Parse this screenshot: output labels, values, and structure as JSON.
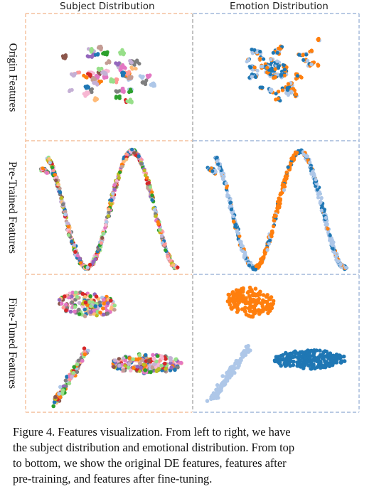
{
  "columns": [
    "Subject Distribution",
    "Emotion Distribution"
  ],
  "rows": [
    "Origin Features",
    "Pre-Trained Features",
    "Fine-Tuned Features"
  ],
  "colors": {
    "subject_border": "#f2b58a",
    "emotion_border": "#8fabd2",
    "subject_palette": [
      "#1f77b4",
      "#ff7f0e",
      "#2ca02c",
      "#d62728",
      "#9467bd",
      "#8c564b",
      "#e377c2",
      "#7f7f7f",
      "#bcbd22",
      "#aec7e8",
      "#f7b6d2",
      "#c49c94",
      "#98df8a",
      "#ff9896",
      "#ffbb78",
      "#c5b0d5"
    ],
    "emotion_palette": [
      "#1f77b4",
      "#ff7f0e",
      "#aec7e8"
    ]
  },
  "caption": {
    "lines": [
      "Figure 4. Features visualization. From left to right, we have",
      "the subject distribution and emotional distribution. From top",
      "to bottom, we show the original DE features, features after",
      "pre-training, and features after fine-tuning."
    ]
  }
}
